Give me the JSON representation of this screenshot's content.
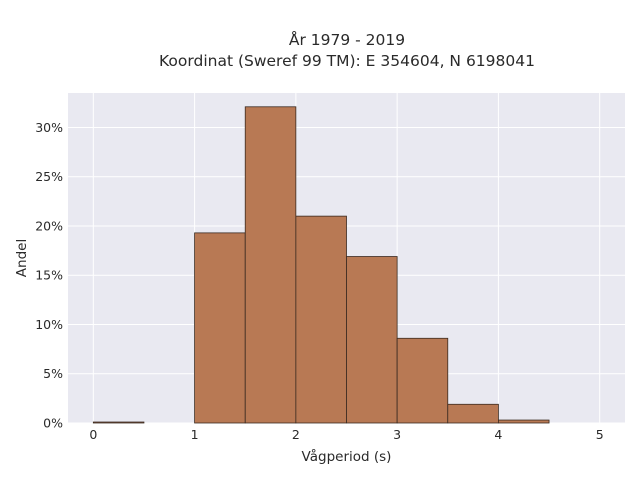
{
  "chart_data": {
    "type": "bar",
    "title": "År 1979 - 2019",
    "subtitle": "Koordinat (Sweref 99 TM): E 354604, N 6198041",
    "xlabel": "Vågperiod (s)",
    "ylabel": "Andel",
    "bins": [
      {
        "start": 0.0,
        "end": 0.5,
        "value": 0.1
      },
      {
        "start": 0.5,
        "end": 1.0,
        "value": 0.0
      },
      {
        "start": 1.0,
        "end": 1.5,
        "value": 19.3
      },
      {
        "start": 1.5,
        "end": 2.0,
        "value": 32.1
      },
      {
        "start": 2.0,
        "end": 2.5,
        "value": 21.0
      },
      {
        "start": 2.5,
        "end": 3.0,
        "value": 16.9
      },
      {
        "start": 3.0,
        "end": 3.5,
        "value": 8.6
      },
      {
        "start": 3.5,
        "end": 4.0,
        "value": 1.9
      },
      {
        "start": 4.0,
        "end": 4.5,
        "value": 0.3
      },
      {
        "start": 4.5,
        "end": 5.0,
        "value": 0.0
      }
    ],
    "xlim": [
      -0.25,
      5.25
    ],
    "ylim": [
      0,
      33.5
    ],
    "x_ticks": [
      {
        "value": 0,
        "label": "0"
      },
      {
        "value": 1,
        "label": "1"
      },
      {
        "value": 2,
        "label": "2"
      },
      {
        "value": 3,
        "label": "3"
      },
      {
        "value": 4,
        "label": "4"
      },
      {
        "value": 5,
        "label": "5"
      }
    ],
    "y_ticks": [
      {
        "value": 0,
        "label": "0%"
      },
      {
        "value": 5,
        "label": "5%"
      },
      {
        "value": 10,
        "label": "10%"
      },
      {
        "value": 15,
        "label": "15%"
      },
      {
        "value": 20,
        "label": "20%"
      },
      {
        "value": 25,
        "label": "25%"
      },
      {
        "value": 30,
        "label": "30%"
      }
    ],
    "grid": true,
    "legend": "none",
    "colors": {
      "bar_fill": "#b87954",
      "bar_edge": "#3a2a20",
      "plot_background": "#e9e9f1",
      "grid": "#ffffff"
    }
  }
}
